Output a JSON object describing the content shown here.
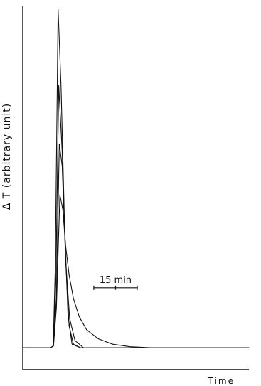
{
  "chart_data": {
    "type": "line",
    "xlabel": "Time",
    "ylabel": "Δ T (arbitrary unit)",
    "x_unit": "min",
    "y_unit": "arbitrary unit",
    "xlim": [
      0,
      78
    ],
    "ylim": [
      0,
      100
    ],
    "grid": false,
    "legend": "none",
    "scale_bar": {
      "label": "15 min",
      "length": 15,
      "ticks": [
        0,
        7.5,
        15
      ],
      "x_start": 24.5,
      "y": 22.5
    },
    "series": [
      {
        "x": [
          0,
          9.5,
          10.5,
          11.2,
          12.2,
          13.2,
          14.4,
          15.6,
          17.0,
          20.0,
          78
        ],
        "values": [
          6,
          6,
          6.5,
          28,
          99,
          78,
          40,
          15,
          7,
          6,
          6
        ]
      },
      {
        "x": [
          0,
          9.5,
          10.5,
          11.4,
          12.4,
          13.6,
          14.8,
          16.0,
          17.5,
          20.0,
          78
        ],
        "values": [
          6,
          6,
          6.5,
          24,
          78,
          60,
          30,
          12,
          7,
          6,
          6
        ]
      },
      {
        "x": [
          0,
          9.5,
          10.6,
          11.6,
          12.6,
          13.6,
          14.8,
          16.2,
          18.0,
          21.0,
          78
        ],
        "values": [
          6,
          6,
          6.5,
          20,
          62,
          56,
          30,
          14,
          8,
          6,
          6
        ]
      },
      {
        "x": [
          0,
          9.5,
          10.6,
          11.6,
          12.8,
          13.8,
          14.8,
          16.0,
          17.5,
          19.5,
          22.0,
          26.0,
          31.0,
          37.0,
          45.0,
          78
        ],
        "values": [
          6,
          6,
          6.5,
          17,
          48,
          44,
          34,
          26,
          19.5,
          14.5,
          11,
          8.5,
          7,
          6.3,
          6,
          6
        ]
      }
    ]
  }
}
